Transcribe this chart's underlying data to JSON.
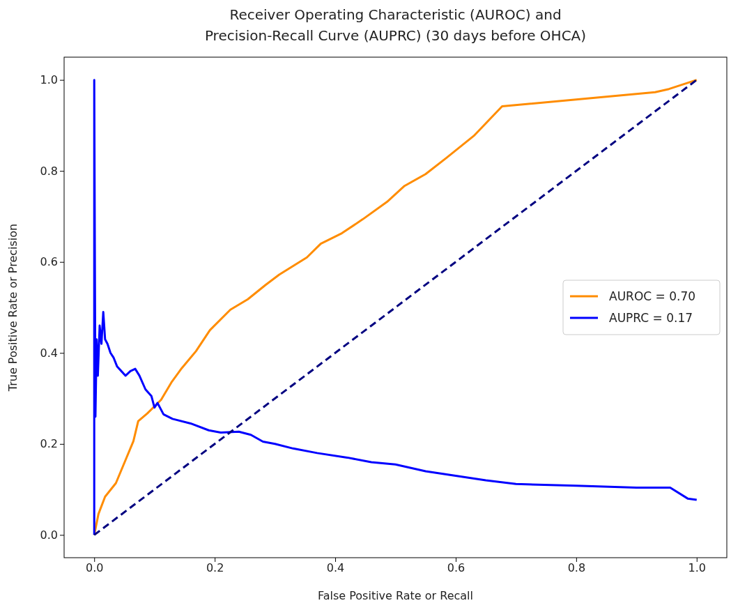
{
  "chart_data": {
    "type": "line",
    "title": "Receiver Operating Characteristic (AUROC) and\nPrecision-Recall Curve (AUPRC) (30 days before OHCA)",
    "xlabel": "False Positive Rate or Recall",
    "ylabel": "True Positive Rate or Precision",
    "xlim": [
      -0.05,
      1.05
    ],
    "ylim": [
      -0.05,
      1.05
    ],
    "xticks": [
      {
        "value": 0,
        "label": "0.0"
      },
      {
        "value": 0.2,
        "label": "0.2"
      },
      {
        "value": 0.4,
        "label": "0.4"
      },
      {
        "value": 0.6,
        "label": "0.6"
      },
      {
        "value": 0.8,
        "label": "0.8"
      },
      {
        "value": 1,
        "label": "1.0"
      }
    ],
    "yticks": [
      {
        "value": 0,
        "label": "0.0"
      },
      {
        "value": 0.2,
        "label": "0.2"
      },
      {
        "value": 0.4,
        "label": "0.4"
      },
      {
        "value": 0.6,
        "label": "0.6"
      },
      {
        "value": 0.8,
        "label": "0.8"
      },
      {
        "value": 1,
        "label": "1.0"
      }
    ],
    "grid": false,
    "legend": "right",
    "series": [
      {
        "name": "AUROC = 0.70",
        "color": "#ff8c00",
        "line_style": "solid",
        "x": [
          0,
          0.007,
          0.018,
          0.036,
          0.053,
          0.065,
          0.073,
          0.088,
          0.111,
          0.128,
          0.145,
          0.169,
          0.192,
          0.226,
          0.255,
          0.284,
          0.307,
          0.353,
          0.376,
          0.411,
          0.446,
          0.486,
          0.515,
          0.55,
          0.584,
          0.63,
          0.677,
          0.931,
          0.954,
          1
        ],
        "values": [
          0,
          0.046,
          0.084,
          0.114,
          0.168,
          0.206,
          0.25,
          0.267,
          0.297,
          0.335,
          0.366,
          0.404,
          0.45,
          0.495,
          0.518,
          0.549,
          0.572,
          0.61,
          0.64,
          0.663,
          0.694,
          0.732,
          0.767,
          0.793,
          0.828,
          0.877,
          0.942,
          0.973,
          0.98,
          1
        ]
      },
      {
        "name": "AUPRC = 0.17",
        "color": "#0000ff",
        "line_style": "solid",
        "x": [
          0,
          0,
          0.002,
          0.004,
          0.006,
          0.009,
          0.012,
          0.015,
          0.018,
          0.022,
          0.027,
          0.032,
          0.038,
          0.045,
          0.052,
          0.06,
          0.068,
          0.075,
          0.085,
          0.095,
          0.1,
          0.105,
          0.115,
          0.13,
          0.16,
          0.19,
          0.21,
          0.24,
          0.26,
          0.28,
          0.3,
          0.33,
          0.37,
          0.42,
          0.46,
          0.5,
          0.55,
          0.6,
          0.65,
          0.7,
          0.8,
          0.9,
          0.956,
          0.985,
          1
        ],
        "values": [
          0,
          1,
          0.26,
          0.43,
          0.35,
          0.46,
          0.42,
          0.49,
          0.43,
          0.42,
          0.4,
          0.39,
          0.37,
          0.36,
          0.35,
          0.36,
          0.365,
          0.35,
          0.32,
          0.305,
          0.28,
          0.29,
          0.265,
          0.255,
          0.245,
          0.23,
          0.225,
          0.227,
          0.22,
          0.205,
          0.2,
          0.19,
          0.18,
          0.17,
          0.16,
          0.155,
          0.14,
          0.13,
          0.12,
          0.112,
          0.108,
          0.104,
          0.104,
          0.08,
          0.077
        ]
      },
      {
        "color": "#000080",
        "line_style": "dashed",
        "x": [
          0,
          1
        ],
        "values": [
          0,
          1
        ]
      }
    ]
  }
}
